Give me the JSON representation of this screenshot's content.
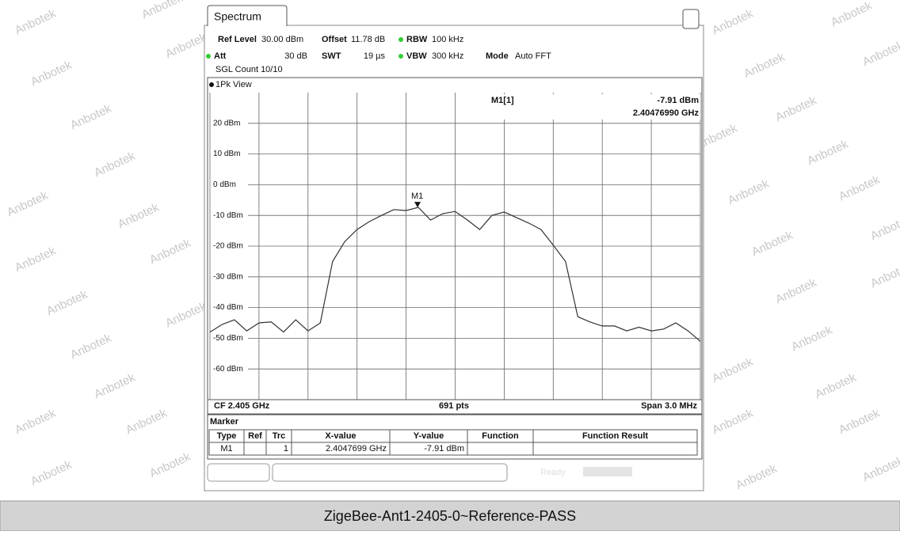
{
  "window": {
    "tab": "Spectrum",
    "ref_level_label": "Ref Level",
    "ref_level": "30.00 dBm",
    "offset_label": "Offset",
    "offset": "11.78 dB",
    "rbw_label": "RBW",
    "rbw": "100 kHz",
    "att_label": "Att",
    "att": "30 dB",
    "swt_label": "SWT",
    "swt": "19 µs",
    "vbw_label": "VBW",
    "vbw": "300 kHz",
    "mode_label": "Mode",
    "mode": "Auto FFT",
    "sgl_count": "SGL Count 10/10",
    "view": "1Pk View"
  },
  "chart_data": {
    "type": "line",
    "xlim": [
      2.4035,
      2.4065
    ],
    "xticks": [
      2.4035,
      2.4038,
      2.4041,
      2.4044,
      2.4047,
      2.405,
      2.4053,
      2.4056,
      2.4059,
      2.4062,
      2.4065
    ],
    "ylim": [
      -70,
      30
    ],
    "yticks": [
      {
        "value": 20,
        "label": "20 dBm"
      },
      {
        "value": 10,
        "label": "10 dBm"
      },
      {
        "value": 0,
        "label": "0 dBm"
      },
      {
        "value": -10,
        "label": "-10 dBm"
      },
      {
        "value": -20,
        "label": "-20 dBm"
      },
      {
        "value": -30,
        "label": "-30 dBm"
      },
      {
        "value": -40,
        "label": "-40 dBm"
      },
      {
        "value": -50,
        "label": "-50 dBm"
      },
      {
        "value": -60,
        "label": "-60 dBm"
      }
    ],
    "grid": true,
    "series": [
      {
        "color": "#333333",
        "values": [
          -48,
          -45.5,
          -44,
          -47.6,
          -45,
          -44.7,
          -48,
          -44,
          -47.6,
          -45,
          -25,
          -18.5,
          -14.6,
          -12,
          -10,
          -8.1,
          -8.4,
          -7.4,
          -11.5,
          -9.4,
          -8.7,
          -11.5,
          -14.6,
          -10,
          -8.9,
          -10.7,
          -12.5,
          -14.6,
          -19.7,
          -25,
          -43,
          -44.7,
          -46,
          -46,
          -47.6,
          -46.4,
          -47.6,
          -47,
          -45,
          -47.6,
          -51
        ]
      }
    ],
    "marker": {
      "name": "M1",
      "readout": "M1[1]",
      "x": 2.4047699,
      "y": -7.91,
      "x_label": "2.40476990 GHz",
      "y_label": "-7.91 dBm"
    },
    "footer": {
      "cf": "CF 2.405 GHz",
      "points": "691 pts",
      "span": "Span 3.0 MHz"
    }
  },
  "marker_table": {
    "title": "Marker",
    "headers": [
      "Type",
      "Ref",
      "Trc",
      "X-value",
      "Y-value",
      "Function",
      "Function Result"
    ],
    "rows": [
      [
        "M1",
        "",
        "1",
        "2.4047699 GHz",
        "-7.91 dBm",
        "",
        ""
      ]
    ]
  },
  "status": "Ready",
  "watermark": "Anbotek",
  "caption": "ZigeBee-Ant1-2405-0~Reference-PASS"
}
